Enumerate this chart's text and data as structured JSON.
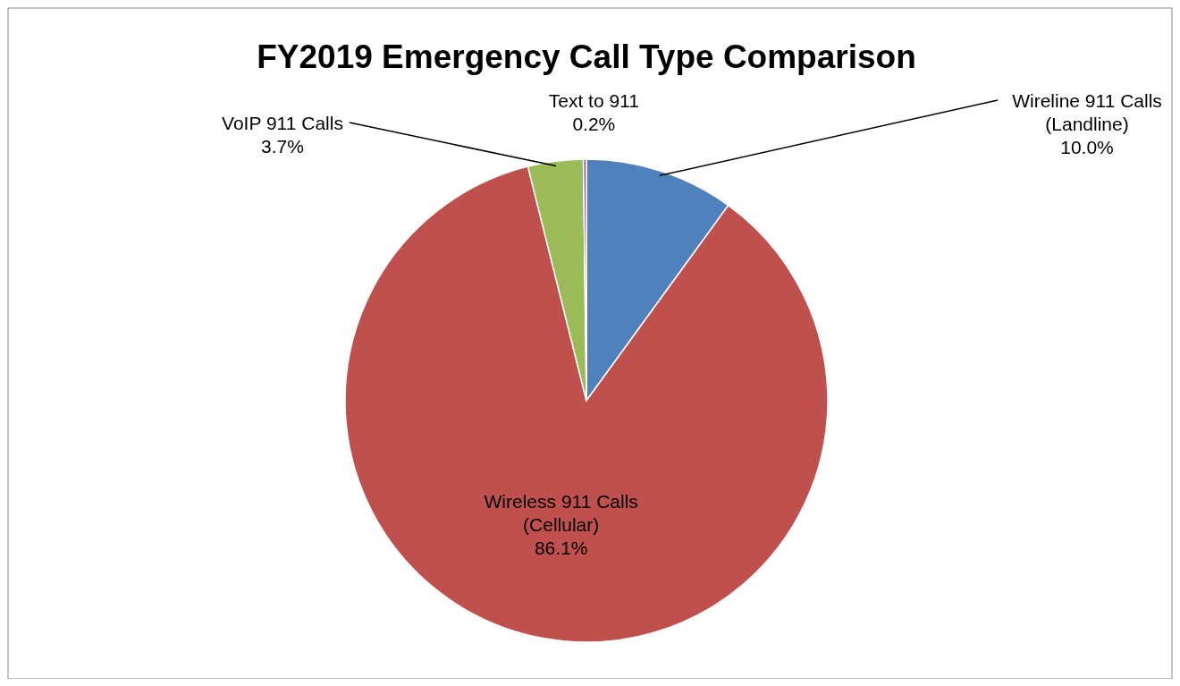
{
  "chart_data": {
    "type": "pie",
    "title": "FY2019 Emergency Call Type Comparison",
    "categories": [
      "Wireline 911 Calls (Landline)",
      "Wireless 911 Calls (Cellular)",
      "VoIP 911 Calls",
      "Text to 911"
    ],
    "values": [
      10.0,
      86.1,
      3.7,
      0.2
    ],
    "colors": [
      "#4f81bd",
      "#c0504d",
      "#9bbb59",
      "#8064a2"
    ],
    "value_labels": [
      "10.0%",
      "86.1%",
      "3.7%",
      "0.2%"
    ],
    "legend": false
  }
}
